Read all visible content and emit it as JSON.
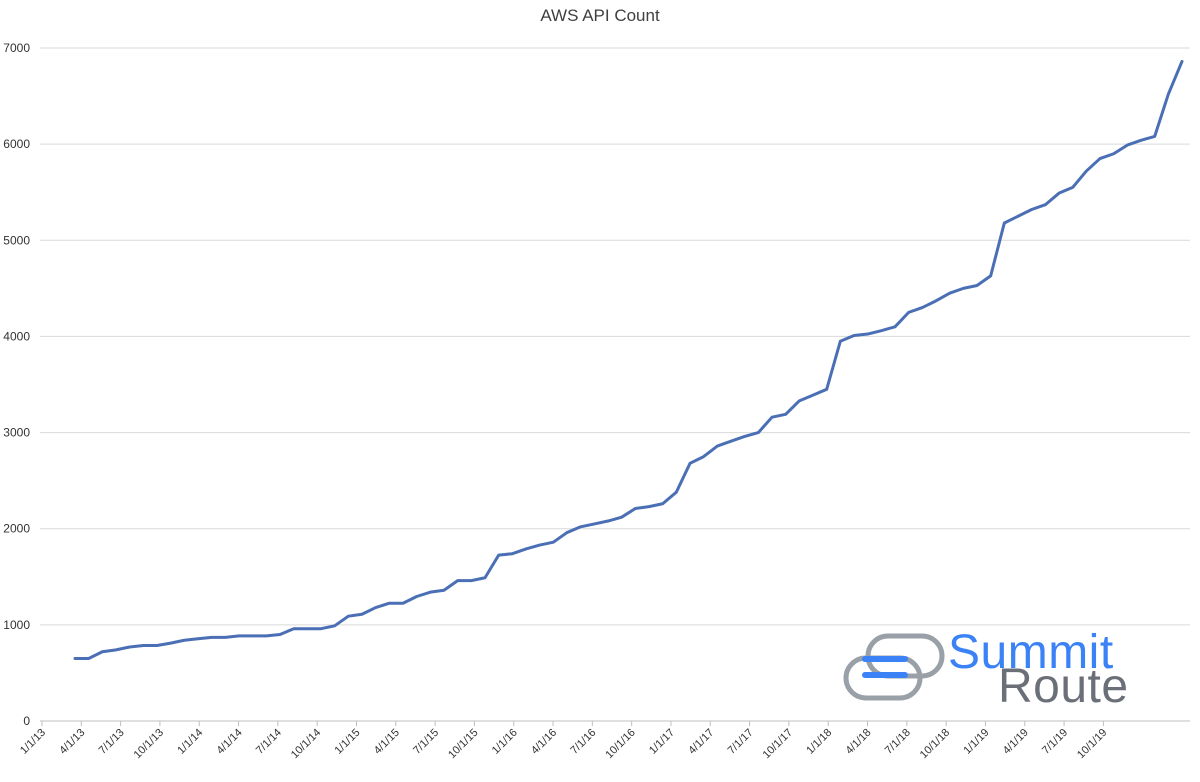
{
  "chart_data": {
    "type": "line",
    "title": "AWS API Count",
    "xlabel": "",
    "ylabel": "",
    "ylim": [
      0,
      7000
    ],
    "y_ticks": [
      0,
      1000,
      2000,
      3000,
      4000,
      5000,
      6000,
      7000
    ],
    "x_tick_labels": [
      "1/1/13",
      "4/1/13",
      "7/1/13",
      "10/1/13",
      "1/1/14",
      "4/1/14",
      "7/1/14",
      "10/1/14",
      "1/1/15",
      "4/1/15",
      "7/1/15",
      "10/1/15",
      "1/1/16",
      "4/1/16",
      "7/1/16",
      "10/1/16",
      "1/1/17",
      "4/1/17",
      "7/1/17",
      "10/1/17",
      "1/1/18",
      "4/1/18",
      "7/1/18",
      "10/1/18",
      "1/1/19",
      "4/1/19",
      "7/1/19",
      "10/1/19"
    ],
    "grid": true,
    "legend": "none",
    "line_color": "#4a6fb5",
    "series": [
      {
        "values": [
          650,
          650,
          720,
          740,
          770,
          785,
          785,
          810,
          840,
          855,
          870,
          870,
          885,
          885,
          885,
          900,
          960,
          960,
          960,
          990,
          1090,
          1110,
          1180,
          1225,
          1225,
          1295,
          1340,
          1360,
          1460,
          1460,
          1490,
          1725,
          1740,
          1790,
          1830,
          1860,
          1960,
          2020,
          2050,
          2080,
          2120,
          2210,
          2230,
          2260,
          2380,
          2680,
          2750,
          2860,
          2910,
          2960,
          3000,
          3160,
          3190,
          3330,
          3390,
          3450,
          3950,
          4010,
          4025,
          4060,
          4100,
          4250,
          4300,
          4370,
          4450,
          4500,
          4530,
          4630,
          5180,
          5250,
          5320,
          5370,
          5490,
          5550,
          5720,
          5850,
          5900,
          5990,
          6040,
          6080,
          6520,
          6860
        ]
      }
    ]
  },
  "watermark": {
    "line1": "Summit",
    "line2": "Route",
    "colors": {
      "summit": "#3b82f6",
      "route": "#6b6f78",
      "logo_blue": "#3b82f6",
      "logo_gray": "#9aa0a8"
    }
  }
}
